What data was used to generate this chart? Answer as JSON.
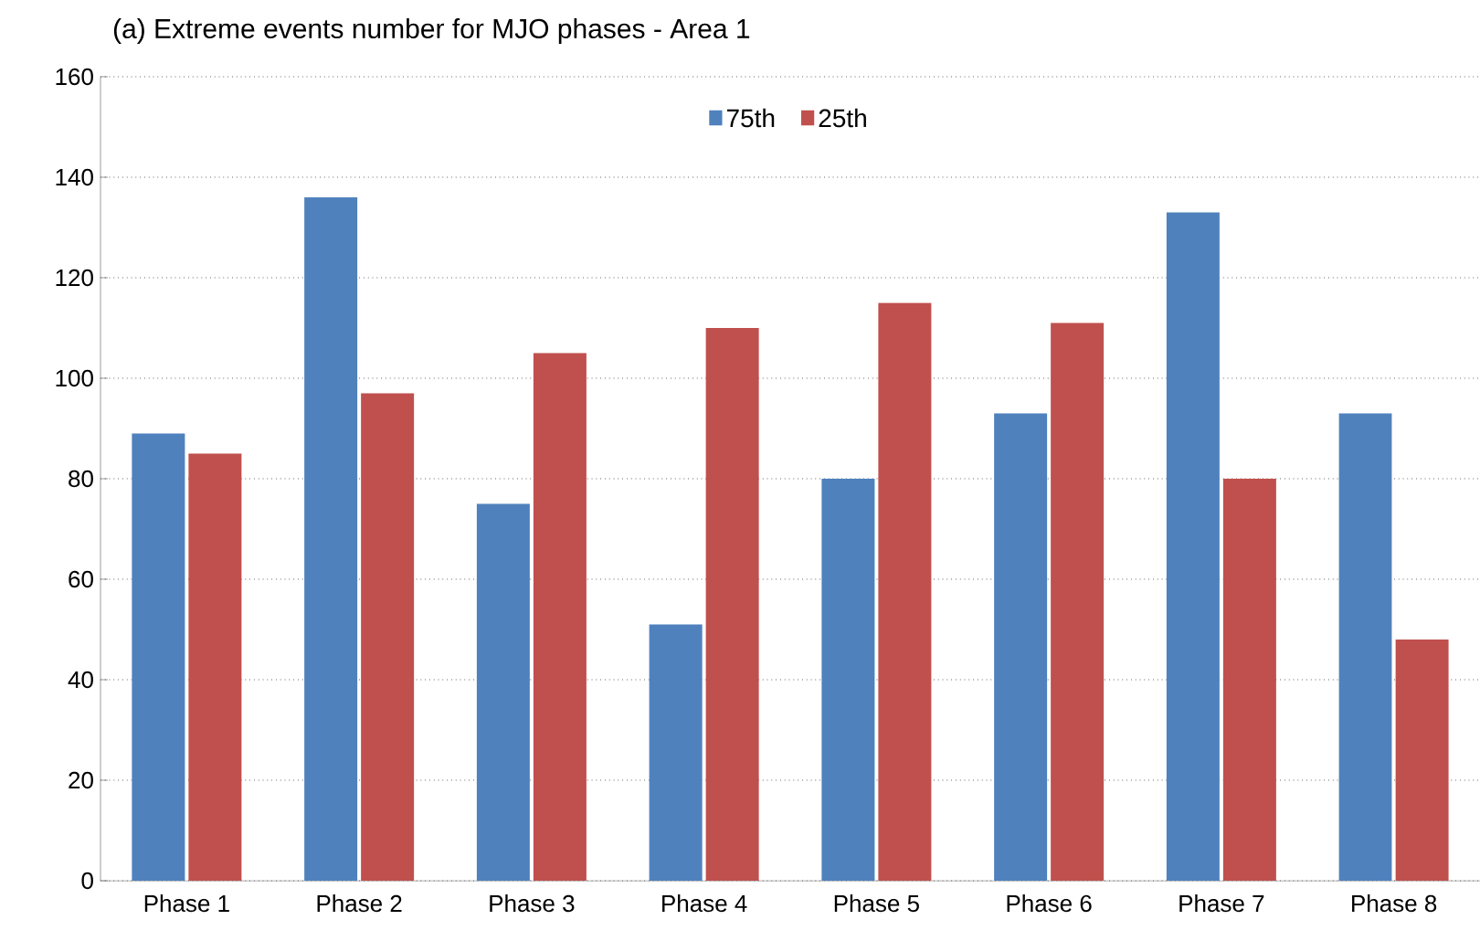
{
  "chart_data": {
    "type": "bar",
    "title": "(a) Extreme events number for MJO phases - Area 1",
    "categories": [
      "Phase 1",
      "Phase 2",
      "Phase 3",
      "Phase 4",
      "Phase 5",
      "Phase 6",
      "Phase 7",
      "Phase 8"
    ],
    "series": [
      {
        "name": "75th",
        "color": "#4f81bd",
        "values": [
          89,
          136,
          75,
          51,
          80,
          93,
          133,
          93
        ]
      },
      {
        "name": "25th",
        "color": "#c0504d",
        "values": [
          85,
          97,
          105,
          110,
          115,
          111,
          80,
          48
        ]
      }
    ],
    "ylim": [
      0,
      160
    ],
    "yticks": [
      0,
      20,
      40,
      60,
      80,
      100,
      120,
      140,
      160
    ],
    "grid": "y",
    "legend": "top"
  }
}
